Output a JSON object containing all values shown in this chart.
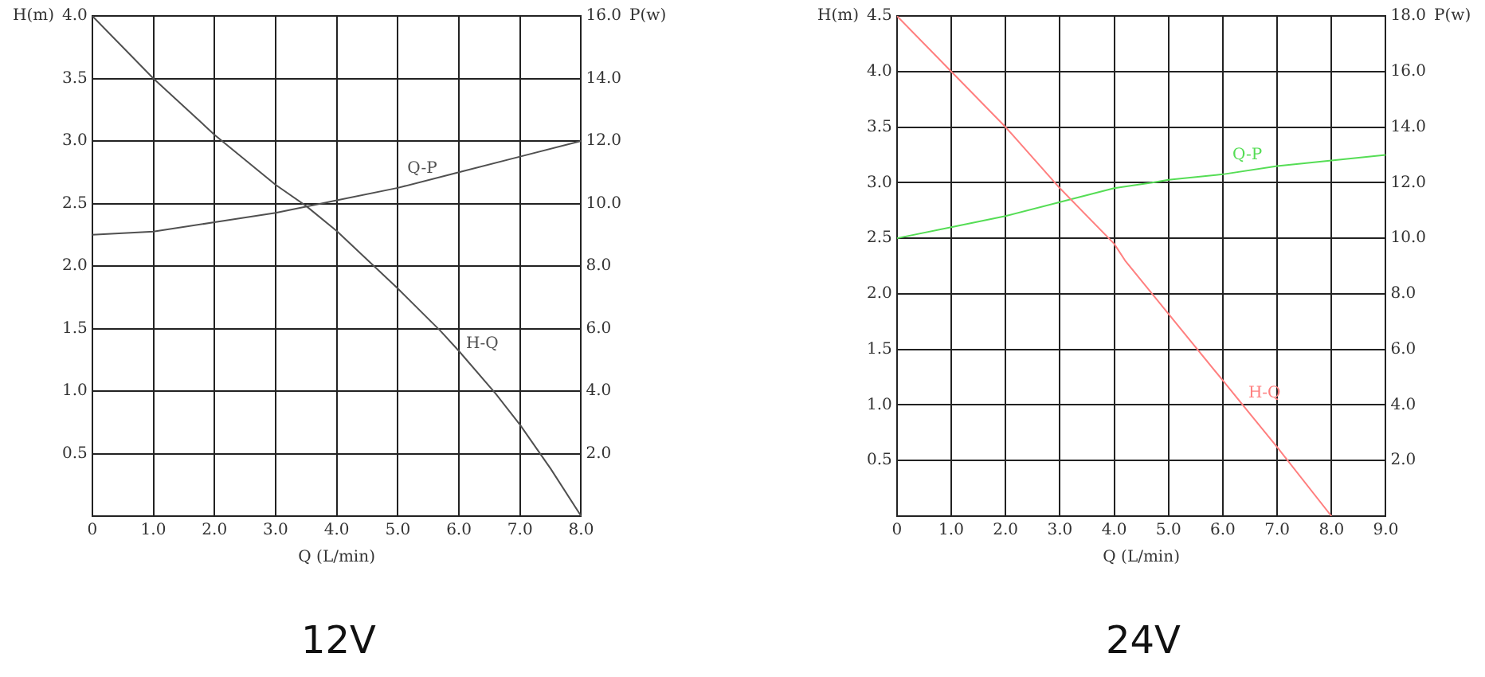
{
  "chart_data": [
    {
      "type": "line",
      "title": "12V",
      "xlabel": "Q (L/min)",
      "ylabel": "H(m)",
      "y2label": "P(w)",
      "xlim": [
        0,
        8
      ],
      "xticks": [
        0,
        {
          "value": 1,
          "label": "1.0"
        },
        {
          "value": 2,
          "label": "2.0"
        },
        {
          "value": 3,
          "label": "3.0"
        },
        {
          "value": 4,
          "label": "4.0"
        },
        {
          "value": 5,
          "label": "5.0"
        },
        {
          "value": 6,
          "label": "6.0"
        },
        {
          "value": 7,
          "label": "7.0"
        },
        {
          "value": 8,
          "label": "8.0"
        }
      ],
      "ylim": [
        0,
        4
      ],
      "yticks": [
        0.5,
        {
          "value": 1,
          "label": "1.0"
        },
        1.5,
        {
          "value": 2,
          "label": "2.0"
        },
        2.5,
        {
          "value": 3,
          "label": "3.0"
        },
        3.5,
        {
          "value": 4,
          "label": "4.0"
        }
      ],
      "y2lim": [
        0,
        16
      ],
      "y2ticks": [
        {
          "value": 2,
          "label": "2.0"
        },
        {
          "value": 4,
          "label": "4.0"
        },
        {
          "value": 6,
          "label": "6.0"
        },
        {
          "value": 8,
          "label": "8.0"
        },
        {
          "value": 10,
          "label": "10.0"
        },
        {
          "value": 12,
          "label": "12.0"
        },
        {
          "value": 14,
          "label": "14.0"
        },
        {
          "value": 16,
          "label": "16.0"
        }
      ],
      "grid": true,
      "legend": false,
      "marker": "none",
      "series": [
        {
          "name": "H-Q",
          "color": "#505050",
          "x": [
            0,
            1,
            2,
            3,
            3.5,
            4,
            5,
            5.7,
            6,
            6.6,
            7,
            7.5,
            8
          ],
          "values": [
            4.0,
            3.5,
            3.05,
            2.65,
            2.48,
            2.28,
            1.82,
            1.48,
            1.32,
            0.98,
            0.73,
            0.38,
            0
          ]
        },
        {
          "name": "Q-P",
          "color": "#505050",
          "axis": "y2",
          "x": [
            0,
            1,
            2,
            3,
            4,
            5,
            6,
            7,
            8
          ],
          "values": [
            9.0,
            9.1,
            9.4,
            9.7,
            10.1,
            10.5,
            11.0,
            11.5,
            12.0
          ]
        }
      ]
    },
    {
      "type": "line",
      "title": "24V",
      "xlabel": "Q (L/min)",
      "ylabel": "H(m)",
      "y2label": "P(w)",
      "xlim": [
        0,
        9
      ],
      "xticks": [
        0,
        {
          "value": 1,
          "label": "1.0"
        },
        {
          "value": 2,
          "label": "2.0"
        },
        {
          "value": 3,
          "label": "3.0"
        },
        {
          "value": 4,
          "label": "4.0"
        },
        {
          "value": 5,
          "label": "5.0"
        },
        {
          "value": 6,
          "label": "6.0"
        },
        {
          "value": 7,
          "label": "7.0"
        },
        {
          "value": 8,
          "label": "8.0"
        },
        {
          "value": 9,
          "label": "9.0"
        }
      ],
      "ylim": [
        0,
        4.5
      ],
      "yticks": [
        0.5,
        {
          "value": 1,
          "label": "1.0"
        },
        1.5,
        {
          "value": 2,
          "label": "2.0"
        },
        2.5,
        {
          "value": 3,
          "label": "3.0"
        },
        3.5,
        {
          "value": 4,
          "label": "4.0"
        },
        4.5
      ],
      "y2lim": [
        0,
        18
      ],
      "y2ticks": [
        {
          "value": 2,
          "label": "2.0"
        },
        {
          "value": 4,
          "label": "4.0"
        },
        {
          "value": 6,
          "label": "6.0"
        },
        {
          "value": 8,
          "label": "8.0"
        },
        {
          "value": 10,
          "label": "10.0"
        },
        {
          "value": 12,
          "label": "12.0"
        },
        {
          "value": 14,
          "label": "14.0"
        },
        {
          "value": 16,
          "label": "16.0"
        },
        {
          "value": 18,
          "label": "18.0"
        }
      ],
      "grid": true,
      "legend": false,
      "marker": "none",
      "series": [
        {
          "name": "H-Q",
          "color": "#ff7f7f",
          "x": [
            0,
            1,
            2,
            3,
            4,
            4.2,
            5,
            6,
            7,
            8
          ],
          "values": [
            4.5,
            4.0,
            3.5,
            2.95,
            2.45,
            2.3,
            1.82,
            1.22,
            0.62,
            0
          ]
        },
        {
          "name": "Q-P",
          "color": "#55dd55",
          "axis": "y2",
          "x": [
            0,
            1,
            2,
            3,
            4,
            4.7,
            5,
            6,
            7,
            8,
            9
          ],
          "values": [
            10.0,
            10.4,
            10.8,
            11.3,
            11.8,
            12.0,
            12.1,
            12.3,
            12.6,
            12.8,
            13.0
          ]
        }
      ]
    }
  ]
}
